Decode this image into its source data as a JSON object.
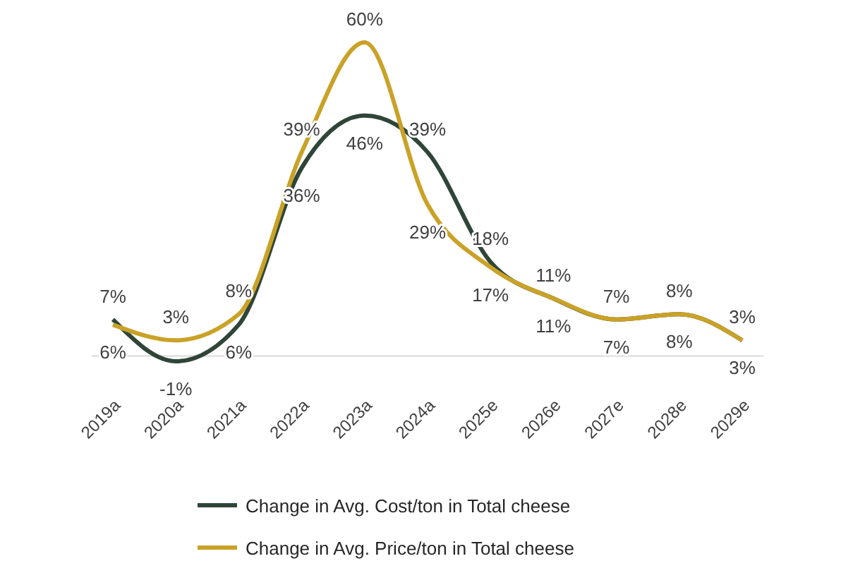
{
  "chart_data": {
    "type": "line",
    "categories": [
      "2019a",
      "2020a",
      "2021a",
      "2022a",
      "2023a",
      "2024a",
      "2025e",
      "2026e",
      "2027e",
      "2028e",
      "2029e"
    ],
    "series": [
      {
        "name": "Change in Avg. Cost/ton in Total cheese",
        "color": "#2f4538",
        "values": [
          7,
          -1,
          6,
          36,
          46,
          39,
          18,
          11,
          7,
          8,
          3
        ],
        "value_labels": [
          "7%",
          "-1%",
          "6%",
          "36%",
          "46%",
          "39%",
          "18%",
          "11%",
          "7%",
          "8%",
          "3%"
        ]
      },
      {
        "name": "Change in Avg. Price/ton in Total cheese",
        "color": "#c9a227",
        "values": [
          6,
          3,
          8,
          39,
          60,
          29,
          17,
          11,
          7,
          8,
          3
        ],
        "value_labels": [
          "6%",
          "3%",
          "8%",
          "39%",
          "60%",
          "29%",
          "17%",
          "11%",
          "7%",
          "8%",
          "3%"
        ]
      }
    ],
    "tick_labels": "x",
    "legend": "bottom",
    "marker": "none",
    "line_style": "solid"
  }
}
